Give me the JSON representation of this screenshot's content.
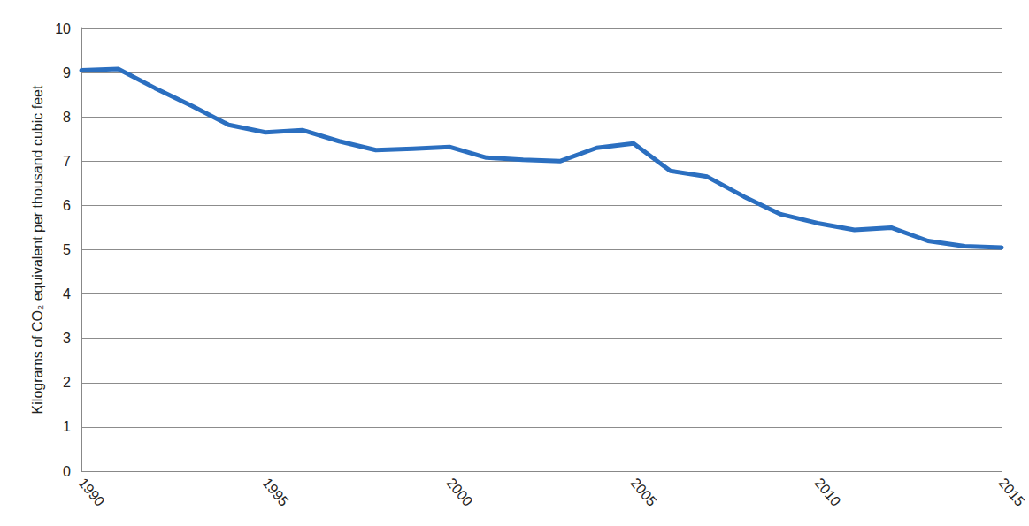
{
  "chart_data": {
    "type": "line",
    "y_label": "Kilograms of CO₂ equivalent per thousand cubic feet",
    "x": [
      1990,
      1991,
      1992,
      1993,
      1994,
      1995,
      1996,
      1997,
      1998,
      1999,
      2000,
      2001,
      2002,
      2003,
      2004,
      2005,
      2006,
      2007,
      2008,
      2009,
      2010,
      2011,
      2012,
      2013,
      2014,
      2015
    ],
    "values": [
      9.05,
      9.08,
      8.65,
      8.25,
      7.82,
      7.65,
      7.7,
      7.45,
      7.25,
      7.28,
      7.32,
      7.08,
      7.03,
      7.0,
      7.3,
      7.4,
      6.78,
      6.65,
      6.2,
      5.8,
      5.6,
      5.45,
      5.5,
      5.2,
      5.08,
      5.05
    ],
    "color": "#2b6fc0",
    "xlim": [
      1990,
      2015
    ],
    "xticks": [
      1990,
      1995,
      2000,
      2005,
      2010,
      2015
    ],
    "ylim": [
      0,
      10
    ],
    "yticks": [
      0,
      1,
      2,
      3,
      4,
      5,
      6,
      7,
      8,
      9,
      10
    ],
    "grid": true
  }
}
